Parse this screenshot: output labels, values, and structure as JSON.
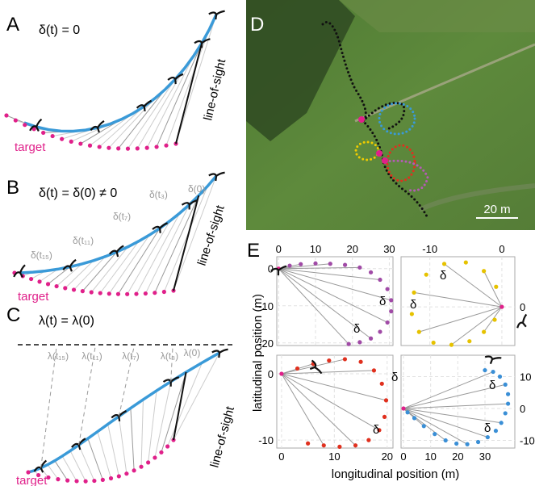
{
  "panel_a": {
    "label": "A",
    "equation": "δ(t) = 0",
    "line_of_sight": "line-of-sight",
    "target": "target"
  },
  "panel_b": {
    "label": "B",
    "equation": "δ(t) = δ(0) ≠ 0",
    "angles": [
      "δ(t₁₅)",
      "δ(t₁₁)",
      "δ(t₇)",
      "δ(t₃)",
      "δ(0)"
    ],
    "line_of_sight": "line-of-sight",
    "target": "target"
  },
  "panel_c": {
    "label": "C",
    "equation": "λ(t) = λ(0)",
    "angles": [
      "λ(t₁₅)",
      "λ(t₁₁)",
      "λ(t₇)",
      "λ(t₃)",
      "λ(0)"
    ],
    "line_of_sight": "line-of-sight",
    "target": "target"
  },
  "panel_d": {
    "label": "D",
    "scale_bar": "20 m"
  },
  "panel_e": {
    "label": "E",
    "y_axis_label": "latitudinal position (m)",
    "x_axis_label": "longitudinal position (m)",
    "plots": [
      {
        "color": "#a04aa6",
        "xlim": [
          -0.5,
          31
        ],
        "ylim": [
          -20.7,
          3.2
        ],
        "xticks": [
          0,
          10,
          20,
          30
        ],
        "yticks": [
          0,
          -10,
          -20
        ],
        "delta_labels": [
          "δ",
          "δ"
        ],
        "x": [
          0,
          3,
          6,
          10,
          14,
          18,
          22,
          25,
          27.5,
          29.5,
          30.5,
          30.5,
          29.5,
          27.5,
          25,
          22,
          19
        ],
        "y": [
          0,
          0.8,
          1.2,
          1.4,
          1.3,
          1,
          0.3,
          -1,
          -3,
          -5.5,
          -8.5,
          -11.5,
          -14.5,
          -17,
          -18.8,
          -19.8,
          -20.3
        ]
      },
      {
        "color": "#e6c200",
        "xlim": [
          -14,
          1.8
        ],
        "ylim": [
          -5.4,
          7
        ],
        "xticks": [
          -10,
          0
        ],
        "yticks": [
          0
        ],
        "delta_labels": [
          "δ",
          "δ"
        ],
        "x": [
          0,
          -0.8,
          -2.5,
          -5,
          -8,
          -10.5,
          -12.2,
          -12.5,
          -11.5,
          -9.5,
          -7,
          -4.5,
          -2.5,
          -1
        ],
        "y": [
          0,
          2.8,
          5,
          6.2,
          6,
          4.5,
          2,
          -1,
          -3.5,
          -5,
          -5.3,
          -4.8,
          -3.5,
          -1.8
        ]
      },
      {
        "color": "#e0301e",
        "xlim": [
          -0.9,
          21.1
        ],
        "ylim": [
          -11.2,
          2.8
        ],
        "xticks": [
          0,
          10,
          20
        ],
        "yticks": [
          0,
          -10
        ],
        "delta_labels": [
          "δ",
          "δ"
        ],
        "x": [
          0,
          3,
          6,
          9,
          12,
          15,
          17.5,
          19,
          19.8,
          19.5,
          18.5,
          16.5,
          14,
          11,
          8,
          5
        ],
        "y": [
          0,
          0.8,
          1.5,
          2,
          2.2,
          1.8,
          0.5,
          -1.5,
          -4,
          -6.5,
          -8.5,
          -10,
          -10.8,
          -11,
          -10.8,
          -10.5
        ]
      },
      {
        "color": "#3a8fd6",
        "xlim": [
          -0.9,
          41
        ],
        "ylim": [
          -12.4,
          16.7
        ],
        "xticks": [
          0,
          10,
          20,
          30
        ],
        "yticks": [
          10,
          0,
          -10
        ],
        "delta_labels": [
          "δ",
          "δ"
        ],
        "x": [
          0,
          30,
          33,
          35.5,
          37.5,
          38.5,
          38.5,
          37.5,
          36,
          34,
          31,
          27.5,
          23.5,
          19.5,
          15.5,
          11.5,
          7.5,
          4,
          1.5
        ],
        "y": [
          0,
          12,
          11.5,
          10,
          7.5,
          4.5,
          1.5,
          -1.5,
          -4.5,
          -7,
          -9,
          -10.5,
          -11.2,
          -11,
          -10,
          -8,
          -5.5,
          -3,
          -1.2
        ]
      }
    ]
  }
}
